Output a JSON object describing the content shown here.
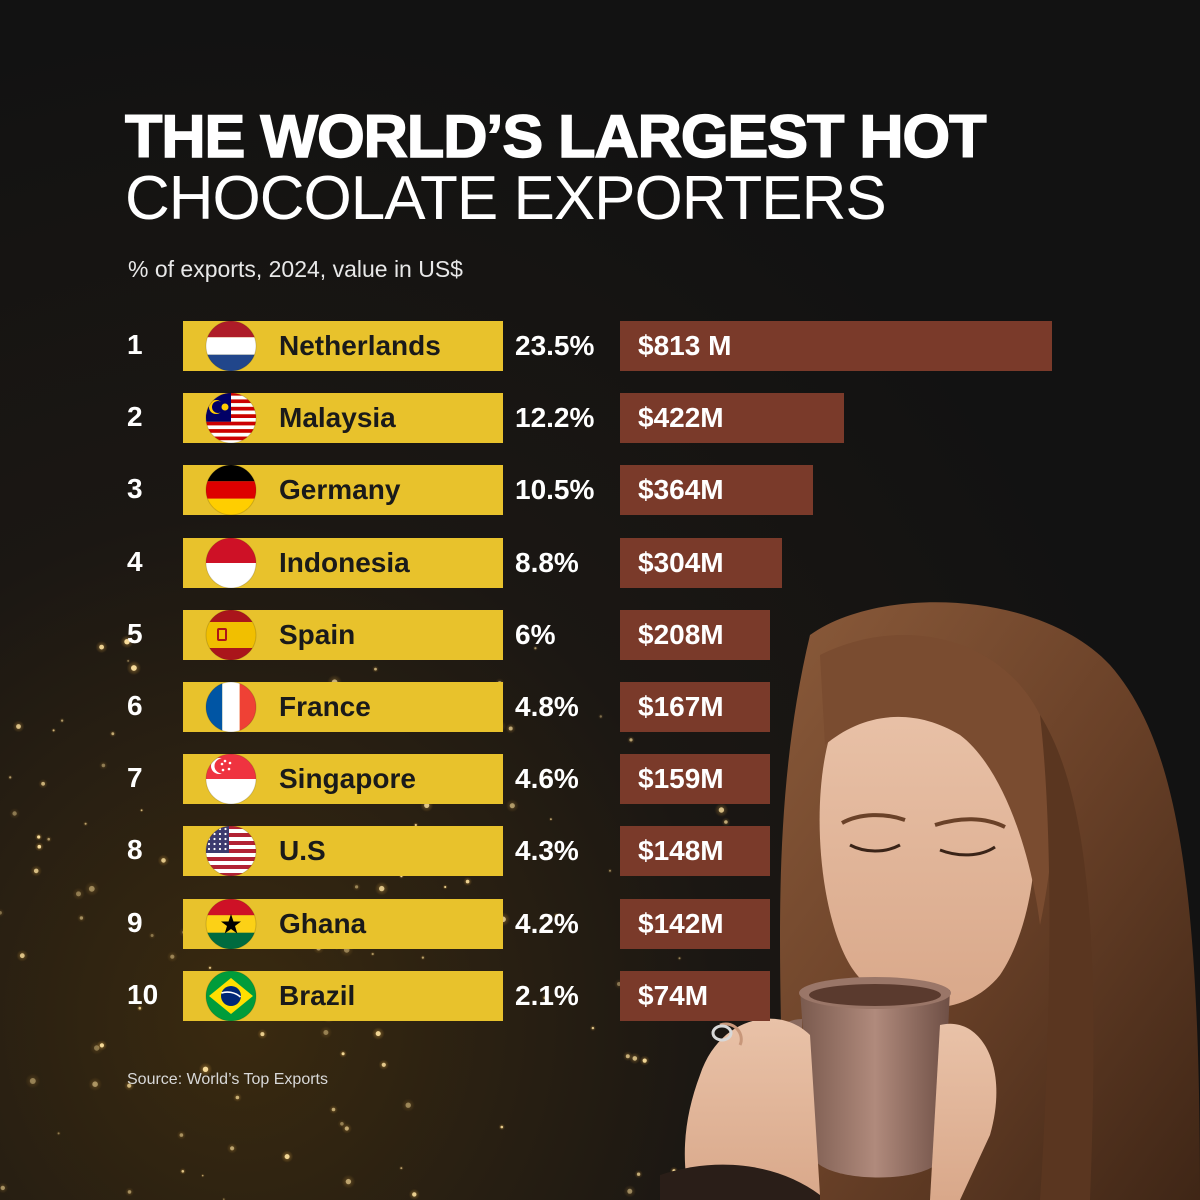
{
  "header": {
    "title_line1": "THE WORLD’S LARGEST HOT",
    "title_line2": "CHOCOLATE EXPORTERS",
    "subtitle": "% of exports, 2024, value in US$"
  },
  "footer": {
    "source": "Source: World’s Top Exports"
  },
  "colors": {
    "name_bar": "#e8c22c",
    "value_bar": "#7a3a2a",
    "background": "#121212"
  },
  "chart_data": {
    "type": "bar",
    "orientation": "horizontal",
    "title": "THE WORLD’S LARGEST HOT CHOCOLATE EXPORTERS",
    "subtitle": "% of exports, 2024, value in US$",
    "xlim": [
      0,
      813
    ],
    "grid": false,
    "rows": [
      {
        "rank": "1",
        "country": "Netherlands",
        "flag": "netherlands-flag-icon",
        "pct": "23.5%",
        "value": 813,
        "value_label": "$813 M"
      },
      {
        "rank": "2",
        "country": "Malaysia",
        "flag": "malaysia-flag-icon",
        "pct": "12.2%",
        "value": 422,
        "value_label": "$422M"
      },
      {
        "rank": "3",
        "country": "Germany",
        "flag": "germany-flag-icon",
        "pct": "10.5%",
        "value": 364,
        "value_label": "$364M"
      },
      {
        "rank": "4",
        "country": "Indonesia",
        "flag": "indonesia-flag-icon",
        "pct": "8.8%",
        "value": 304,
        "value_label": "$304M"
      },
      {
        "rank": "5",
        "country": "Spain",
        "flag": "spain-flag-icon",
        "pct": "6%",
        "value": 208,
        "value_label": "$208M"
      },
      {
        "rank": "6",
        "country": "France",
        "flag": "france-flag-icon",
        "pct": "4.8%",
        "value": 167,
        "value_label": "$167M"
      },
      {
        "rank": "7",
        "country": "Singapore",
        "flag": "singapore-flag-icon",
        "pct": "4.6%",
        "value": 159,
        "value_label": "$159M"
      },
      {
        "rank": "8",
        "country": "U.S",
        "flag": "usa-flag-icon",
        "pct": "4.3%",
        "value": 148,
        "value_label": "$148M"
      },
      {
        "rank": "9",
        "country": "Ghana",
        "flag": "ghana-flag-icon",
        "pct": "4.2%",
        "value": 142,
        "value_label": "$142M"
      },
      {
        "rank": "10",
        "country": "Brazil",
        "flag": "brazil-flag-icon",
        "pct": "2.1%",
        "value": 74,
        "value_label": "$74M"
      }
    ]
  }
}
